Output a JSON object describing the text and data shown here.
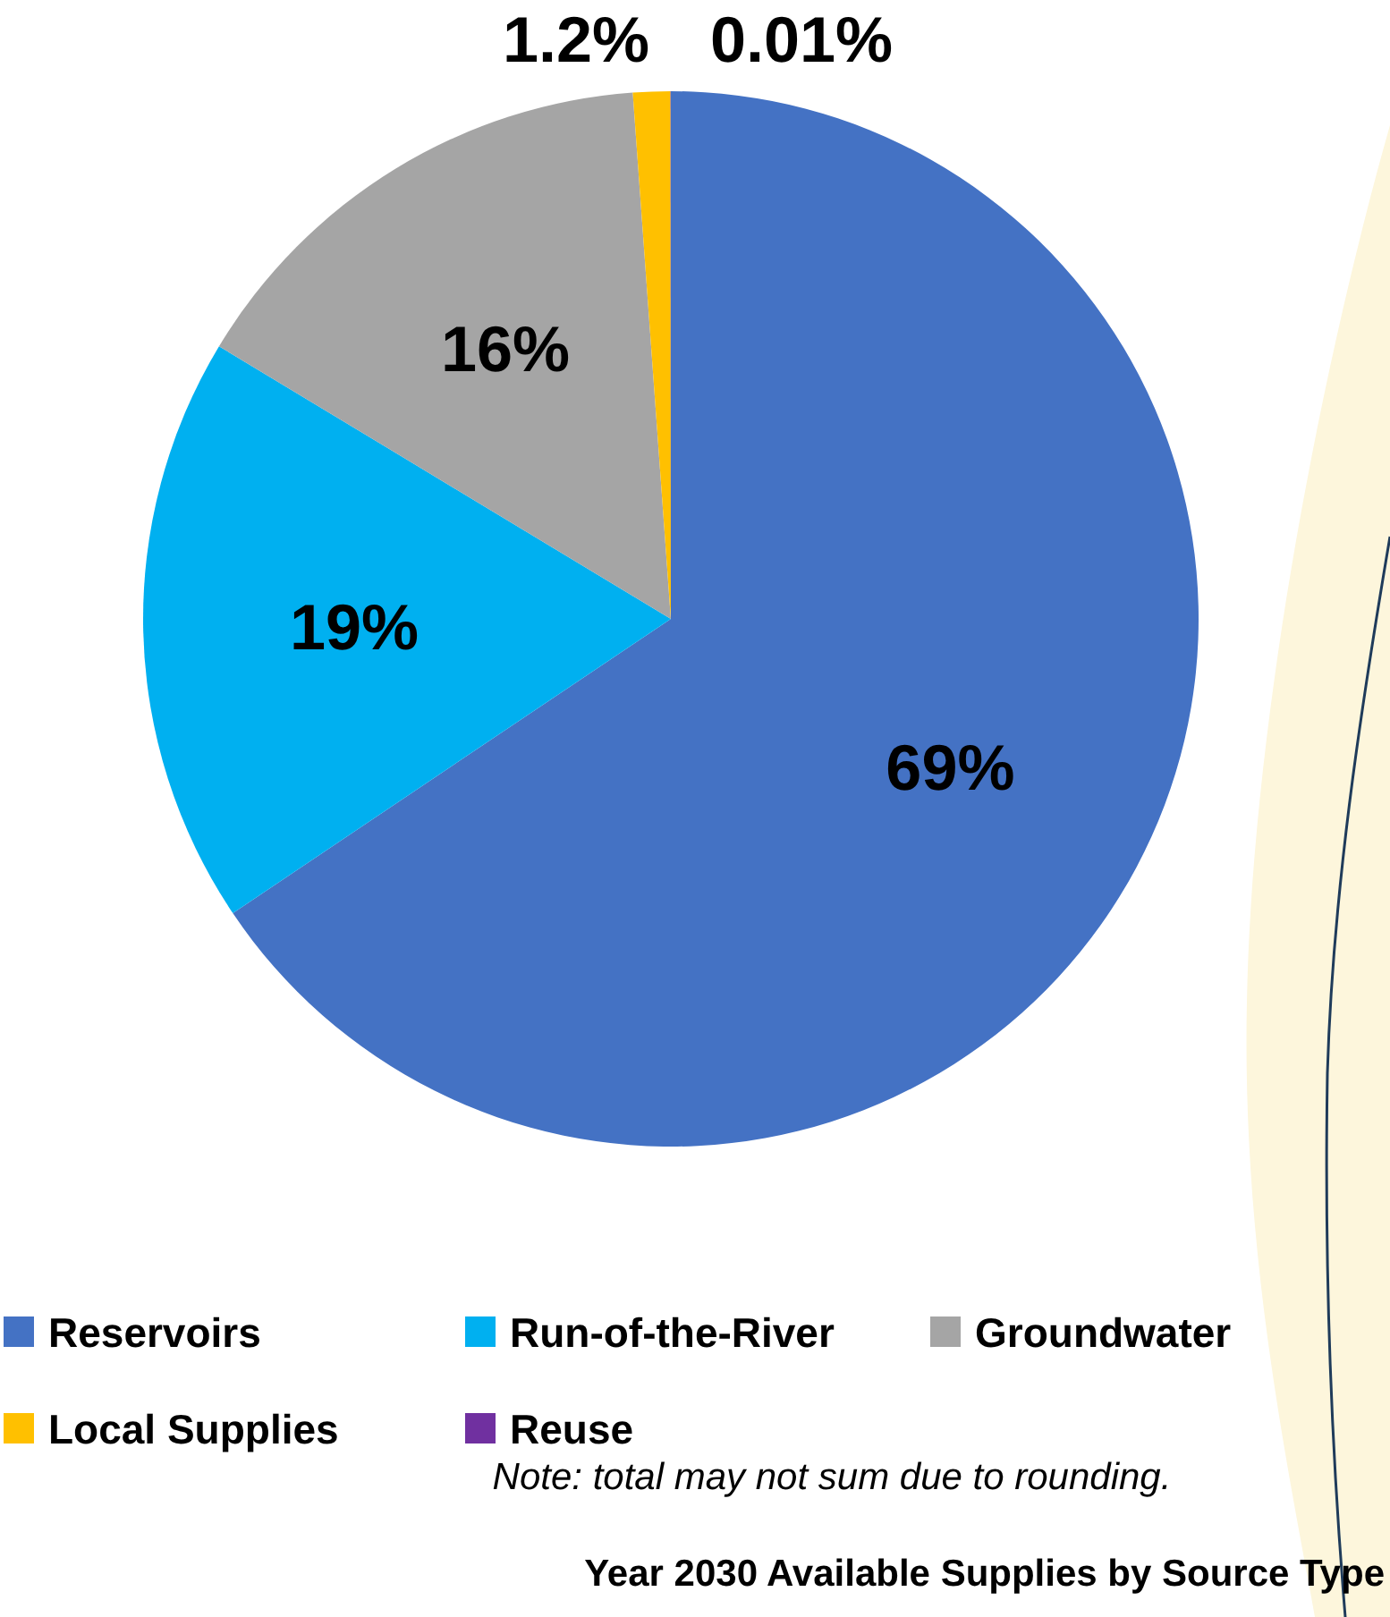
{
  "chart_data": {
    "type": "pie",
    "title": "Year 2030 Available Supplies by Source Type",
    "annotations": [
      "Note: total may not sum due to rounding."
    ],
    "categories": [
      "Reservoirs",
      "Run-of-the-River",
      "Groundwater",
      "Local Supplies",
      "Reuse"
    ],
    "values": [
      69,
      19,
      16,
      1.2,
      0.01
    ],
    "value_labels": [
      "69%",
      "19%",
      "16%",
      "1.2%",
      "0.01%"
    ],
    "colors": [
      "#4472c4",
      "#00b0f0",
      "#a5a5a5",
      "#ffc000",
      "#7030a0"
    ],
    "legend": "bottom"
  }
}
